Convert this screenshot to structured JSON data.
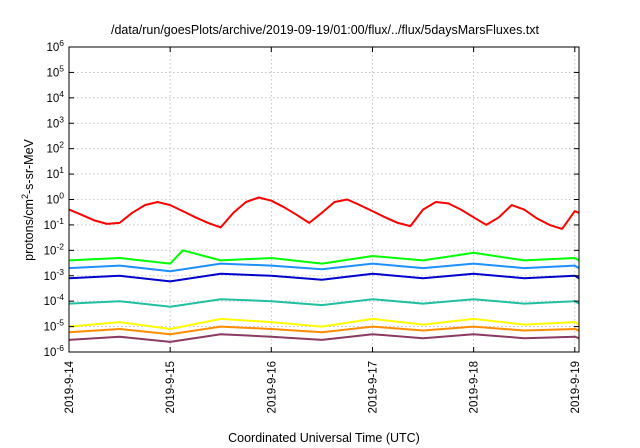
{
  "chart_data": {
    "type": "line",
    "title": "/data/run/goesPlots/archive/2019-09-19/01:00/flux/../flux/5daysMarsFluxes.txt",
    "xlabel": "Coordinated Universal Time (UTC)",
    "ylabel": "protons/cm2-s-sr-MeV",
    "ylabel_parts": {
      "pre": "protons/cm",
      "sup": "2",
      "post": "-s-sr-MeV"
    },
    "y_scale": "log",
    "ylim": [
      1e-06,
      1000000.0
    ],
    "y_tick_labels": [
      {
        "base": "10",
        "exp": "-6"
      },
      {
        "base": "10",
        "exp": "-5"
      },
      {
        "base": "10",
        "exp": "-4"
      },
      {
        "base": "10",
        "exp": "-3"
      },
      {
        "base": "10",
        "exp": "-2"
      },
      {
        "base": "10",
        "exp": "-1"
      },
      {
        "base": "10",
        "exp": "0"
      },
      {
        "base": "10",
        "exp": "1"
      },
      {
        "base": "10",
        "exp": "2"
      },
      {
        "base": "10",
        "exp": "3"
      },
      {
        "base": "10",
        "exp": "4"
      },
      {
        "base": "10",
        "exp": "5"
      },
      {
        "base": "10",
        "exp": "6"
      }
    ],
    "xlim": [
      "2019-09-14",
      "2019-09-19 01:00"
    ],
    "x_tick_labels": [
      "2019-9-14",
      "2019-9-15",
      "2019-9-16",
      "2019-9-17",
      "2019-9-18",
      "2019-9-19"
    ],
    "grid": true,
    "series": [
      {
        "color": "#ff0000",
        "x": [
          "2019-09-14 00:00",
          "2019-09-14 03:00",
          "2019-09-14 06:00",
          "2019-09-14 09:00",
          "2019-09-14 12:00",
          "2019-09-14 15:00",
          "2019-09-14 18:00",
          "2019-09-14 21:00",
          "2019-09-15 00:00",
          "2019-09-15 03:00",
          "2019-09-15 06:00",
          "2019-09-15 09:00",
          "2019-09-15 12:00",
          "2019-09-15 15:00",
          "2019-09-15 18:00",
          "2019-09-15 21:00",
          "2019-09-16 00:00",
          "2019-09-16 03:00",
          "2019-09-16 06:00",
          "2019-09-16 09:00",
          "2019-09-16 12:00",
          "2019-09-16 15:00",
          "2019-09-16 18:00",
          "2019-09-16 21:00",
          "2019-09-17 00:00",
          "2019-09-17 03:00",
          "2019-09-17 06:00",
          "2019-09-17 09:00",
          "2019-09-17 12:00",
          "2019-09-17 15:00",
          "2019-09-17 18:00",
          "2019-09-17 21:00",
          "2019-09-18 00:00",
          "2019-09-18 03:00",
          "2019-09-18 06:00",
          "2019-09-18 09:00",
          "2019-09-18 12:00",
          "2019-09-18 15:00",
          "2019-09-18 18:00",
          "2019-09-18 21:00",
          "2019-09-19 00:00",
          "2019-09-19 01:00"
        ],
        "values": [
          0.4,
          0.25,
          0.15,
          0.11,
          0.12,
          0.3,
          0.6,
          0.8,
          0.6,
          0.35,
          0.2,
          0.12,
          0.08,
          0.3,
          0.8,
          1.2,
          0.9,
          0.5,
          0.25,
          0.12,
          0.3,
          0.8,
          1.0,
          0.6,
          0.35,
          0.2,
          0.12,
          0.09,
          0.4,
          0.8,
          0.7,
          0.4,
          0.2,
          0.1,
          0.2,
          0.6,
          0.4,
          0.18,
          0.1,
          0.07,
          0.35,
          0.3
        ]
      },
      {
        "color": "#00ff00",
        "x": [
          "2019-09-14 00:00",
          "2019-09-14 12:00",
          "2019-09-15 00:00",
          "2019-09-15 03:00",
          "2019-09-15 12:00",
          "2019-09-16 00:00",
          "2019-09-16 12:00",
          "2019-09-17 00:00",
          "2019-09-17 12:00",
          "2019-09-18 00:00",
          "2019-09-18 12:00",
          "2019-09-19 00:00",
          "2019-09-19 01:00"
        ],
        "values": [
          0.004,
          0.005,
          0.003,
          0.01,
          0.004,
          0.005,
          0.003,
          0.006,
          0.004,
          0.008,
          0.004,
          0.005,
          0.004
        ]
      },
      {
        "color": "#1e90ff",
        "x": [
          "2019-09-14 00:00",
          "2019-09-14 12:00",
          "2019-09-15 00:00",
          "2019-09-15 12:00",
          "2019-09-16 00:00",
          "2019-09-16 12:00",
          "2019-09-17 00:00",
          "2019-09-17 12:00",
          "2019-09-18 00:00",
          "2019-09-18 12:00",
          "2019-09-19 00:00",
          "2019-09-19 01:00"
        ],
        "values": [
          0.002,
          0.0025,
          0.0015,
          0.003,
          0.0025,
          0.0018,
          0.003,
          0.002,
          0.003,
          0.002,
          0.0025,
          0.002
        ]
      },
      {
        "color": "#0000cd",
        "x": [
          "2019-09-14 00:00",
          "2019-09-14 12:00",
          "2019-09-15 00:00",
          "2019-09-15 12:00",
          "2019-09-16 00:00",
          "2019-09-16 12:00",
          "2019-09-17 00:00",
          "2019-09-17 12:00",
          "2019-09-18 00:00",
          "2019-09-18 12:00",
          "2019-09-19 00:00",
          "2019-09-19 01:00"
        ],
        "values": [
          0.0008,
          0.001,
          0.0006,
          0.0012,
          0.001,
          0.0007,
          0.0012,
          0.0008,
          0.0012,
          0.0008,
          0.001,
          0.0008
        ]
      },
      {
        "color": "#20c0a0",
        "x": [
          "2019-09-14 00:00",
          "2019-09-14 12:00",
          "2019-09-15 00:00",
          "2019-09-15 12:00",
          "2019-09-16 00:00",
          "2019-09-16 12:00",
          "2019-09-17 00:00",
          "2019-09-17 12:00",
          "2019-09-18 00:00",
          "2019-09-18 12:00",
          "2019-09-19 00:00",
          "2019-09-19 01:00"
        ],
        "values": [
          8e-05,
          0.0001,
          6e-05,
          0.00012,
          0.0001,
          7e-05,
          0.00012,
          8e-05,
          0.00012,
          8e-05,
          0.0001,
          8e-05
        ]
      },
      {
        "color": "#ffff00",
        "x": [
          "2019-09-14 00:00",
          "2019-09-14 12:00",
          "2019-09-15 00:00",
          "2019-09-15 12:00",
          "2019-09-16 00:00",
          "2019-09-16 12:00",
          "2019-09-17 00:00",
          "2019-09-17 12:00",
          "2019-09-18 00:00",
          "2019-09-18 12:00",
          "2019-09-19 00:00",
          "2019-09-19 01:00"
        ],
        "values": [
          1e-05,
          1.5e-05,
          8e-06,
          2e-05,
          1.5e-05,
          1e-05,
          2e-05,
          1.2e-05,
          2e-05,
          1.2e-05,
          1.5e-05,
          1.2e-05
        ]
      },
      {
        "color": "#ff8c00",
        "x": [
          "2019-09-14 00:00",
          "2019-09-14 12:00",
          "2019-09-15 00:00",
          "2019-09-15 12:00",
          "2019-09-16 00:00",
          "2019-09-16 12:00",
          "2019-09-17 00:00",
          "2019-09-17 12:00",
          "2019-09-18 00:00",
          "2019-09-18 12:00",
          "2019-09-19 00:00",
          "2019-09-19 01:00"
        ],
        "values": [
          6e-06,
          8e-06,
          5e-06,
          1e-05,
          8e-06,
          6e-06,
          1e-05,
          7e-06,
          1e-05,
          7e-06,
          8e-06,
          7e-06
        ]
      },
      {
        "color": "#8b3a62",
        "x": [
          "2019-09-14 00:00",
          "2019-09-14 12:00",
          "2019-09-15 00:00",
          "2019-09-15 12:00",
          "2019-09-16 00:00",
          "2019-09-16 12:00",
          "2019-09-17 00:00",
          "2019-09-17 12:00",
          "2019-09-18 00:00",
          "2019-09-18 12:00",
          "2019-09-19 00:00",
          "2019-09-19 01:00"
        ],
        "values": [
          3e-06,
          4e-06,
          2.5e-06,
          5e-06,
          4e-06,
          3e-06,
          5e-06,
          3.5e-06,
          5e-06,
          3.5e-06,
          4e-06,
          3.5e-06
        ]
      }
    ]
  }
}
